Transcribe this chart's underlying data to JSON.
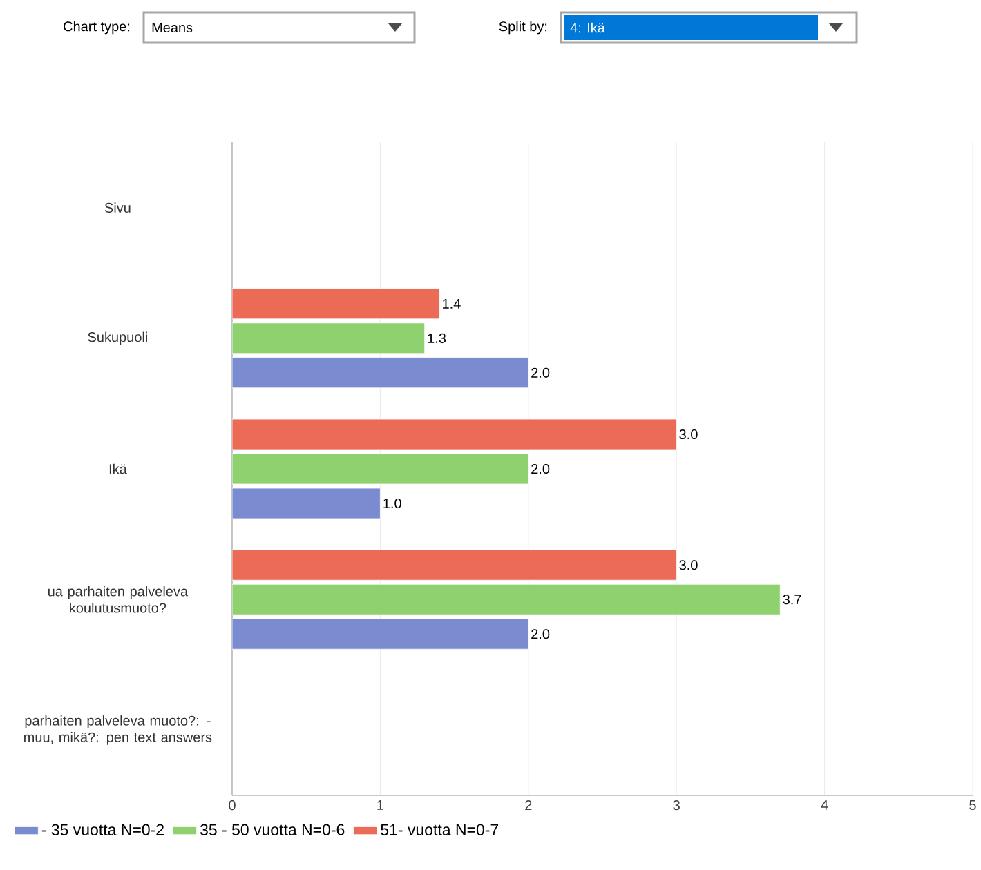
{
  "chart_data": {
    "type": "bar",
    "orientation": "horizontal",
    "categories": [
      "Sivu",
      "Sukupuoli",
      "Ikä",
      "ua parhaiten palveleva koulutusmuoto?",
      "parhaiten palveleva muoto?: - muu, mikä?: pen text answers"
    ],
    "series": [
      {
        "name": "- 35 vuotta N=0-2",
        "color": "#7b8bd0",
        "values": [
          null,
          2.0,
          1.0,
          2.0,
          null
        ],
        "value_labels": [
          null,
          "2.0",
          "1.0",
          "2.0",
          null
        ]
      },
      {
        "name": "35 - 50 vuotta N=0-6",
        "color": "#8fd16e",
        "values": [
          null,
          1.3,
          2.0,
          3.7,
          null
        ],
        "value_labels": [
          null,
          "1.3",
          "2.0",
          "3.7",
          null
        ]
      },
      {
        "name": "51- vuotta N=0-7",
        "color": "#eb6b56",
        "values": [
          null,
          1.4,
          3.0,
          3.0,
          null
        ],
        "value_labels": [
          null,
          "1.4",
          "3.0",
          "3.0",
          null
        ]
      }
    ],
    "xlim": [
      0,
      5
    ],
    "xticks": [
      0,
      1,
      2,
      3,
      4,
      5
    ],
    "grid": "x",
    "legend": "bottom",
    "annotations": [
      "Chart type:",
      "Means",
      "Split by:",
      "4: Ikä"
    ]
  }
}
